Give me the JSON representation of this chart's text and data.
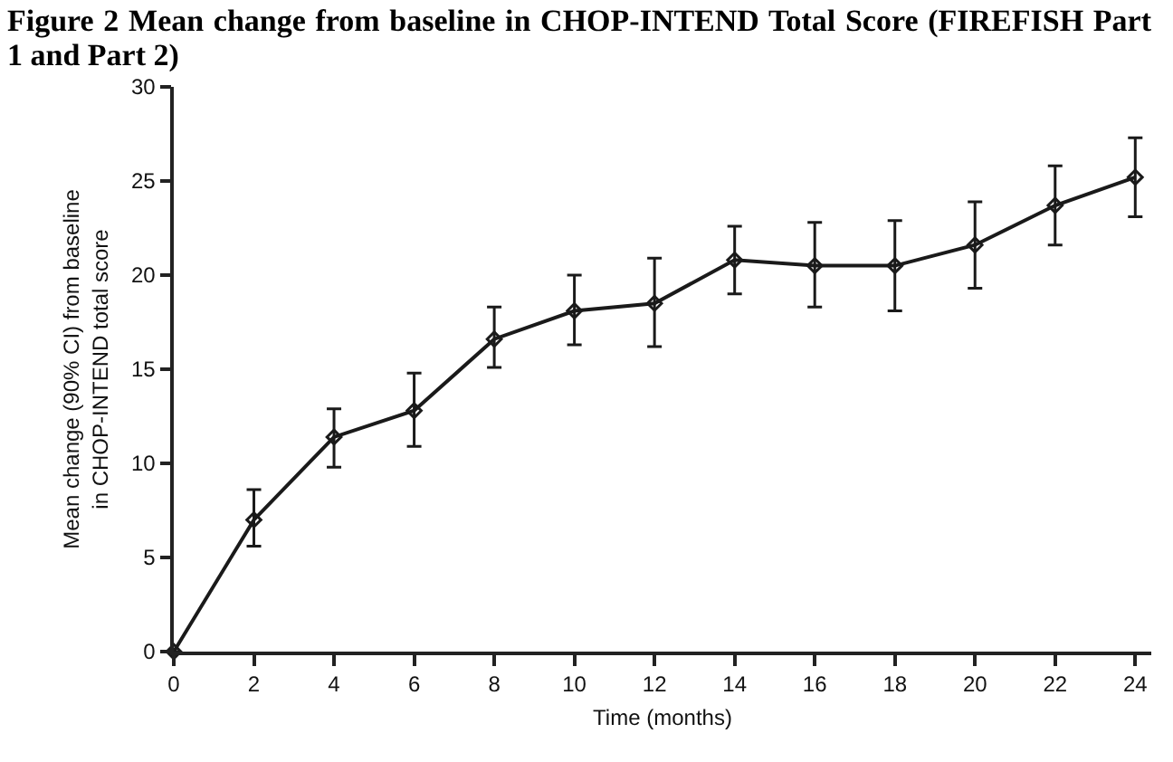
{
  "chart_data": {
    "type": "line",
    "title": "Figure 2 Mean change from baseline in CHOP-INTEND Total Score (FIREFISH Part 1 and Part 2)",
    "xlabel": "Time (months)",
    "ylabel": "Mean change (90% CI) from baseline in CHOP-INTEND total score",
    "x": [
      0,
      2,
      4,
      6,
      8,
      10,
      12,
      14,
      16,
      18,
      20,
      22,
      24
    ],
    "series": [
      {
        "color": "#1a1a1a",
        "values": [
          0,
          7.0,
          11.4,
          12.8,
          16.6,
          18.1,
          18.5,
          20.8,
          20.5,
          20.5,
          21.6,
          23.7,
          25.2
        ],
        "errors": [
          null,
          [
            5.6,
            8.6
          ],
          [
            9.8,
            12.9
          ],
          [
            10.9,
            14.8
          ],
          [
            15.1,
            18.3
          ],
          [
            16.3,
            20.0
          ],
          [
            16.2,
            20.9
          ],
          [
            19.0,
            22.6
          ],
          [
            18.3,
            22.8
          ],
          [
            18.1,
            22.9
          ],
          [
            19.3,
            23.9
          ],
          [
            21.6,
            25.8
          ],
          [
            23.1,
            27.3
          ]
        ]
      }
    ],
    "xlim": [
      0,
      24.4
    ],
    "xticks": [
      0,
      2,
      4,
      6,
      8,
      10,
      12,
      14,
      16,
      18,
      20,
      22,
      24
    ],
    "ylim": [
      0,
      30
    ],
    "yticks": [
      0,
      5,
      10,
      15,
      20,
      25,
      30
    ],
    "marker": "diamond",
    "line_style": "solid"
  }
}
